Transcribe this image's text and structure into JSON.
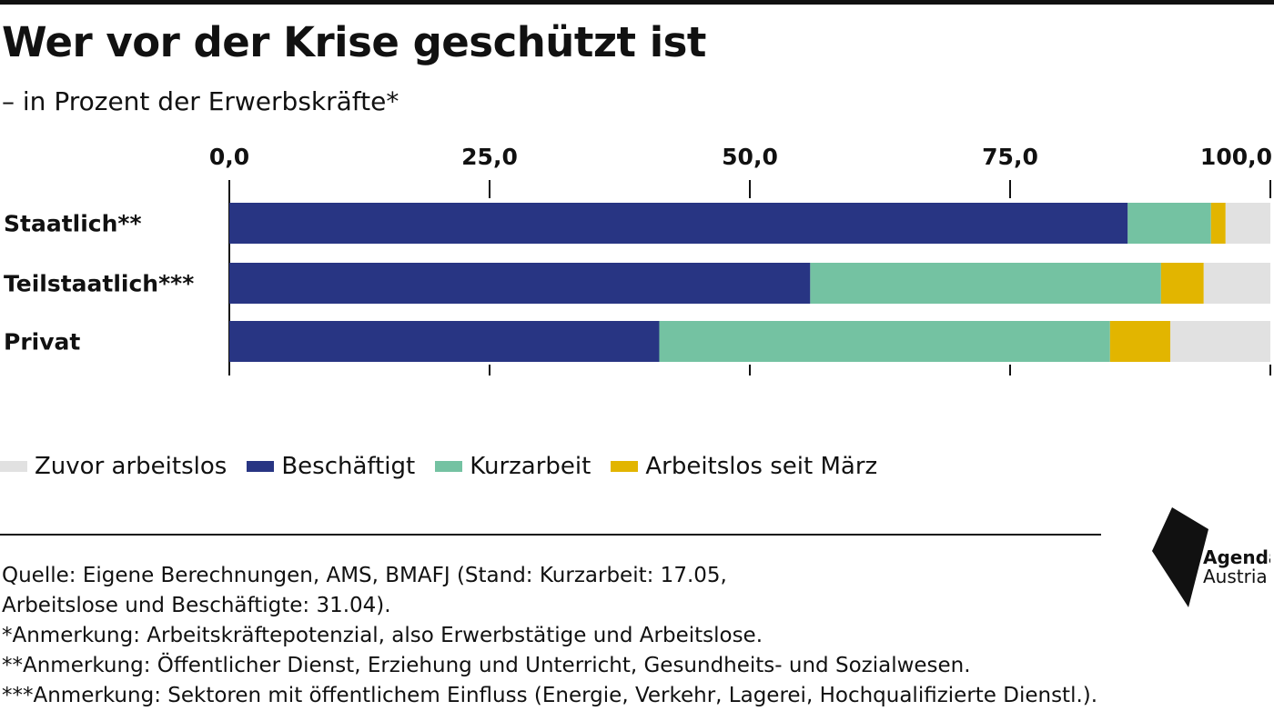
{
  "header": {
    "title": "Wer vor der Krise geschützt ist",
    "subtitle": "– in Prozent der Erwerbskräfte*"
  },
  "legend": [
    {
      "label": "Zuvor arbeitslos",
      "color": "#e1e1e1"
    },
    {
      "label": "Beschäftigt",
      "color": "#283583"
    },
    {
      "label": "Kurzarbeit",
      "color": "#74c2a2"
    },
    {
      "label": "Arbeitslos seit März",
      "color": "#e2b500"
    }
  ],
  "footer": {
    "notes": [
      "Quelle: Eigene Berechnungen, AMS, BMAFJ (Stand: Kurzarbeit: 17.05,",
      "Arbeitslose und Beschäftigte: 31.04).",
      "*Anmerkung: Arbeitskräftepotenzial, also Erwerbstätige und Arbeitslose.",
      "**Anmerkung: Öffentlicher Dienst, Erziehung und Unterricht, Gesundheits- und Sozialwesen.",
      "***Anmerkung: Sektoren mit öffentlichem Einfluss (Energie, Verkehr, Lagerei, Hochqualifizierte Dienstl.)."
    ],
    "logo_text": [
      "Agenda",
      "Austria"
    ]
  },
  "chart_data": {
    "type": "bar",
    "orientation": "horizontal",
    "stacked": true,
    "categories": [
      "Staatlich**",
      "Teilstaatlich***",
      "Privat"
    ],
    "series": [
      {
        "name": "Beschäftigt",
        "color": "#283583",
        "values": [
          86.3,
          55.8,
          41.3
        ]
      },
      {
        "name": "Kurzarbeit",
        "color": "#74c2a2",
        "values": [
          8.0,
          33.7,
          43.3
        ]
      },
      {
        "name": "Arbeitslos seit März",
        "color": "#e2b500",
        "values": [
          1.4,
          4.1,
          5.8
        ]
      },
      {
        "name": "Zuvor arbeitslos",
        "color": "#e1e1e1",
        "values": [
          4.3,
          6.4,
          9.6
        ]
      }
    ],
    "xticks": [
      "0,0",
      "25,0",
      "50,0",
      "75,0",
      "100,0"
    ],
    "xlim": [
      0,
      100
    ],
    "axis_position": "top",
    "grid": false,
    "legend_position": "bottom"
  }
}
